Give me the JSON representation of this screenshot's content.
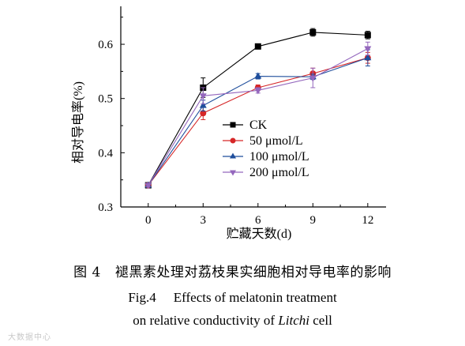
{
  "chart_data": {
    "type": "line",
    "xlabel": "贮藏天数(d)",
    "ylabel": "相对导电率(%)",
    "x": [
      0,
      3,
      6,
      9,
      12
    ],
    "x_ticks": [
      "0",
      "3",
      "6",
      "9",
      "12"
    ],
    "xlim": [
      -1.5,
      13
    ],
    "ylim": [
      0.3,
      0.67
    ],
    "y_ticks": [
      "0.3",
      "0.4",
      "0.5",
      "0.6"
    ],
    "y_tick_values": [
      0.3,
      0.4,
      0.5,
      0.6
    ],
    "grid": false,
    "legend_position": "center-right",
    "series": [
      {
        "name": "CK",
        "color": "#000000",
        "marker": "square",
        "values": [
          0.34,
          0.52,
          0.596,
          0.622,
          0.617
        ],
        "errors": [
          0.003,
          0.018,
          0.003,
          0.007,
          0.007
        ]
      },
      {
        "name": "50 μmol/L",
        "color": "#d62728",
        "marker": "circle",
        "values": [
          0.34,
          0.473,
          0.52,
          0.546,
          0.575
        ],
        "errors": [
          0.003,
          0.012,
          0.005,
          0.01,
          0.01
        ]
      },
      {
        "name": "100 μmol/L",
        "color": "#1f4e9c",
        "marker": "triangle-up",
        "values": [
          0.34,
          0.487,
          0.541,
          0.54,
          0.575
        ],
        "errors": [
          0.003,
          0.01,
          0.005,
          0.005,
          0.015
        ]
      },
      {
        "name": "200 μmol/L",
        "color": "#9467bd",
        "marker": "triangle-down",
        "values": [
          0.34,
          0.505,
          0.515,
          0.538,
          0.592
        ],
        "errors": [
          0.003,
          0.015,
          0.005,
          0.018,
          0.012
        ]
      }
    ]
  },
  "caption": {
    "zh_fig": "图 4",
    "zh_text": "褪黑素处理对荔枝果实细胞相对导电率的影响",
    "en_fig": "Fig.4",
    "en_line1": "Effects of melatonin treatment",
    "en_line2_prefix": "on relative conductivity of ",
    "en_line2_italic": "Litchi",
    "en_line2_suffix": " cell"
  },
  "watermark": "大数据中心"
}
